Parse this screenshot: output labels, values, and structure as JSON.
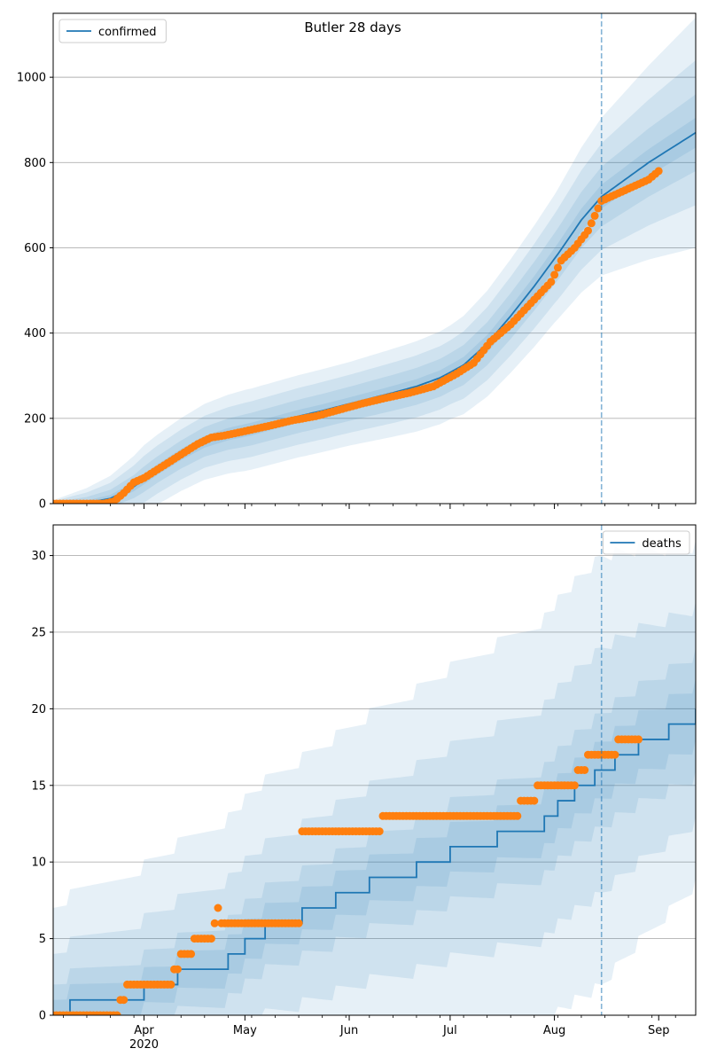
{
  "title": "Butler 28 days",
  "colors": {
    "model": "#1f77b4",
    "observed": "#ff7f0e",
    "grid": "#b0b0b0",
    "band": "#1f77b4"
  },
  "x_axis": {
    "start": "2020-03-05",
    "end": "2020-09-12",
    "month_ticks": [
      {
        "date": "2020-04-01",
        "label": "Apr"
      },
      {
        "date": "2020-05-01",
        "label": "May"
      },
      {
        "date": "2020-06-01",
        "label": "Jun"
      },
      {
        "date": "2020-07-01",
        "label": "Jul"
      },
      {
        "date": "2020-08-01",
        "label": "Aug"
      },
      {
        "date": "2020-09-01",
        "label": "Sep"
      }
    ],
    "year_label": "2020",
    "minor_tick_dates": [
      "2020-03-08",
      "2020-03-15",
      "2020-03-22",
      "2020-03-29",
      "2020-04-05",
      "2020-04-12",
      "2020-04-19",
      "2020-04-26",
      "2020-05-03",
      "2020-05-10",
      "2020-05-17",
      "2020-05-24",
      "2020-05-31",
      "2020-06-07",
      "2020-06-14",
      "2020-06-21",
      "2020-06-28",
      "2020-07-05",
      "2020-07-12",
      "2020-07-19",
      "2020-07-26",
      "2020-08-02",
      "2020-08-09",
      "2020-08-16",
      "2020-08-23",
      "2020-08-30",
      "2020-09-06"
    ]
  },
  "forecast_start_date": "2020-08-15",
  "chart_data": [
    {
      "type": "line",
      "legend": {
        "label": "confirmed",
        "position": "upper-left"
      },
      "ylim": [
        0,
        1150
      ],
      "yticks": [
        0,
        200,
        400,
        600,
        800,
        1000
      ],
      "grid": "y",
      "model": {
        "name": "confirmed",
        "points": [
          [
            "2020-03-05",
            0
          ],
          [
            "2020-03-15",
            2
          ],
          [
            "2020-03-22",
            12
          ],
          [
            "2020-03-29",
            40
          ],
          [
            "2020-04-05",
            80
          ],
          [
            "2020-04-12",
            115
          ],
          [
            "2020-04-19",
            145
          ],
          [
            "2020-04-26",
            163
          ],
          [
            "2020-05-03",
            175
          ],
          [
            "2020-05-10",
            190
          ],
          [
            "2020-05-17",
            205
          ],
          [
            "2020-05-24",
            218
          ],
          [
            "2020-05-31",
            232
          ],
          [
            "2020-06-07",
            246
          ],
          [
            "2020-06-14",
            260
          ],
          [
            "2020-06-21",
            275
          ],
          [
            "2020-06-28",
            295
          ],
          [
            "2020-07-05",
            325
          ],
          [
            "2020-07-12",
            375
          ],
          [
            "2020-07-19",
            440
          ],
          [
            "2020-07-26",
            510
          ],
          [
            "2020-08-02",
            585
          ],
          [
            "2020-08-09",
            665
          ],
          [
            "2020-08-15",
            720
          ],
          [
            "2020-08-22",
            760
          ],
          [
            "2020-08-29",
            800
          ],
          [
            "2020-09-05",
            835
          ],
          [
            "2020-09-12",
            870
          ]
        ]
      },
      "band_widths": [
        [
          [
            "2020-03-05",
            2
          ],
          [
            "2020-04-01",
            12
          ],
          [
            "2020-05-01",
            15
          ],
          [
            "2020-06-01",
            15
          ],
          [
            "2020-07-01",
            18
          ],
          [
            "2020-08-01",
            25
          ],
          [
            "2020-08-15",
            28
          ],
          [
            "2020-09-12",
            35
          ]
        ],
        [
          [
            "2020-03-05",
            4
          ],
          [
            "2020-04-01",
            30
          ],
          [
            "2020-05-01",
            38
          ],
          [
            "2020-06-01",
            40
          ],
          [
            "2020-07-01",
            45
          ],
          [
            "2020-08-01",
            60
          ],
          [
            "2020-08-15",
            70
          ],
          [
            "2020-09-12",
            90
          ]
        ],
        [
          [
            "2020-03-05",
            6
          ],
          [
            "2020-04-01",
            55
          ],
          [
            "2020-05-01",
            65
          ],
          [
            "2020-06-01",
            68
          ],
          [
            "2020-07-01",
            75
          ],
          [
            "2020-08-01",
            105
          ],
          [
            "2020-08-15",
            125
          ],
          [
            "2020-09-12",
            170
          ]
        ],
        [
          [
            "2020-03-05",
            8
          ],
          [
            "2020-04-01",
            80
          ],
          [
            "2020-05-01",
            95
          ],
          [
            "2020-06-01",
            98
          ],
          [
            "2020-07-01",
            110
          ],
          [
            "2020-08-01",
            150
          ],
          [
            "2020-08-15",
            185
          ],
          [
            "2020-09-12",
            270
          ]
        ]
      ],
      "observed": {
        "name": "confirmed observed",
        "points": [
          [
            "2020-03-05",
            0
          ],
          [
            "2020-03-20",
            0
          ],
          [
            "2020-03-23",
            5
          ],
          [
            "2020-03-26",
            25
          ],
          [
            "2020-03-29",
            50
          ],
          [
            "2020-04-01",
            60
          ],
          [
            "2020-04-05",
            80
          ],
          [
            "2020-04-09",
            100
          ],
          [
            "2020-04-13",
            120
          ],
          [
            "2020-04-17",
            140
          ],
          [
            "2020-04-21",
            155
          ],
          [
            "2020-04-25",
            160
          ],
          [
            "2020-05-01",
            170
          ],
          [
            "2020-05-08",
            182
          ],
          [
            "2020-05-15",
            195
          ],
          [
            "2020-05-22",
            205
          ],
          [
            "2020-05-29",
            220
          ],
          [
            "2020-06-05",
            235
          ],
          [
            "2020-06-12",
            248
          ],
          [
            "2020-06-19",
            260
          ],
          [
            "2020-06-26",
            275
          ],
          [
            "2020-07-03",
            305
          ],
          [
            "2020-07-08",
            330
          ],
          [
            "2020-07-13",
            380
          ],
          [
            "2020-07-19",
            420
          ],
          [
            "2020-07-25",
            470
          ],
          [
            "2020-07-31",
            520
          ],
          [
            "2020-08-03",
            570
          ],
          [
            "2020-08-07",
            600
          ],
          [
            "2020-08-11",
            640
          ],
          [
            "2020-08-15",
            710
          ],
          [
            "2020-08-22",
            735
          ],
          [
            "2020-08-29",
            760
          ],
          [
            "2020-09-01",
            780
          ]
        ]
      }
    },
    {
      "type": "line",
      "step": true,
      "legend": {
        "label": "deaths",
        "position": "upper-right"
      },
      "ylim": [
        0,
        32
      ],
      "yticks": [
        0,
        5,
        10,
        15,
        20,
        25,
        30
      ],
      "grid": "y",
      "model": {
        "name": "deaths",
        "points": [
          [
            "2020-03-05",
            0
          ],
          [
            "2020-03-10",
            1
          ],
          [
            "2020-04-01",
            2
          ],
          [
            "2020-04-11",
            3
          ],
          [
            "2020-04-26",
            4
          ],
          [
            "2020-05-01",
            5
          ],
          [
            "2020-05-07",
            6
          ],
          [
            "2020-05-18",
            7
          ],
          [
            "2020-05-28",
            8
          ],
          [
            "2020-06-07",
            9
          ],
          [
            "2020-06-21",
            10
          ],
          [
            "2020-07-01",
            11
          ],
          [
            "2020-07-15",
            12
          ],
          [
            "2020-07-29",
            13
          ],
          [
            "2020-08-02",
            14
          ],
          [
            "2020-08-07",
            15
          ],
          [
            "2020-08-13",
            16
          ],
          [
            "2020-08-19",
            17
          ],
          [
            "2020-08-26",
            18
          ],
          [
            "2020-09-04",
            19
          ],
          [
            "2020-09-12",
            20
          ]
        ]
      },
      "band_widths": [
        [
          [
            "2020-03-05",
            1
          ],
          [
            "2020-09-12",
            2
          ]
        ],
        [
          [
            "2020-03-05",
            2
          ],
          [
            "2020-09-12",
            4
          ]
        ],
        [
          [
            "2020-03-05",
            4
          ],
          [
            "2020-08-15",
            8
          ],
          [
            "2020-09-12",
            7
          ]
        ],
        [
          [
            "2020-03-05",
            7
          ],
          [
            "2020-08-15",
            14
          ],
          [
            "2020-09-12",
            11
          ]
        ]
      ],
      "observed": {
        "name": "deaths observed",
        "points": [
          [
            "2020-03-05",
            0
          ],
          [
            "2020-03-24",
            0
          ],
          [
            "2020-03-25",
            1
          ],
          [
            "2020-03-27",
            2
          ],
          [
            "2020-04-10",
            3
          ],
          [
            "2020-04-12",
            4
          ],
          [
            "2020-04-16",
            5
          ],
          [
            "2020-04-22",
            6
          ],
          [
            "2020-04-23",
            7
          ],
          [
            "2020-04-24",
            6
          ],
          [
            "2020-05-18",
            12
          ],
          [
            "2020-06-11",
            13
          ],
          [
            "2020-07-22",
            14
          ],
          [
            "2020-07-27",
            15
          ],
          [
            "2020-08-08",
            16
          ],
          [
            "2020-08-11",
            17
          ],
          [
            "2020-08-20",
            18
          ],
          [
            "2020-08-26",
            18
          ]
        ]
      }
    }
  ]
}
